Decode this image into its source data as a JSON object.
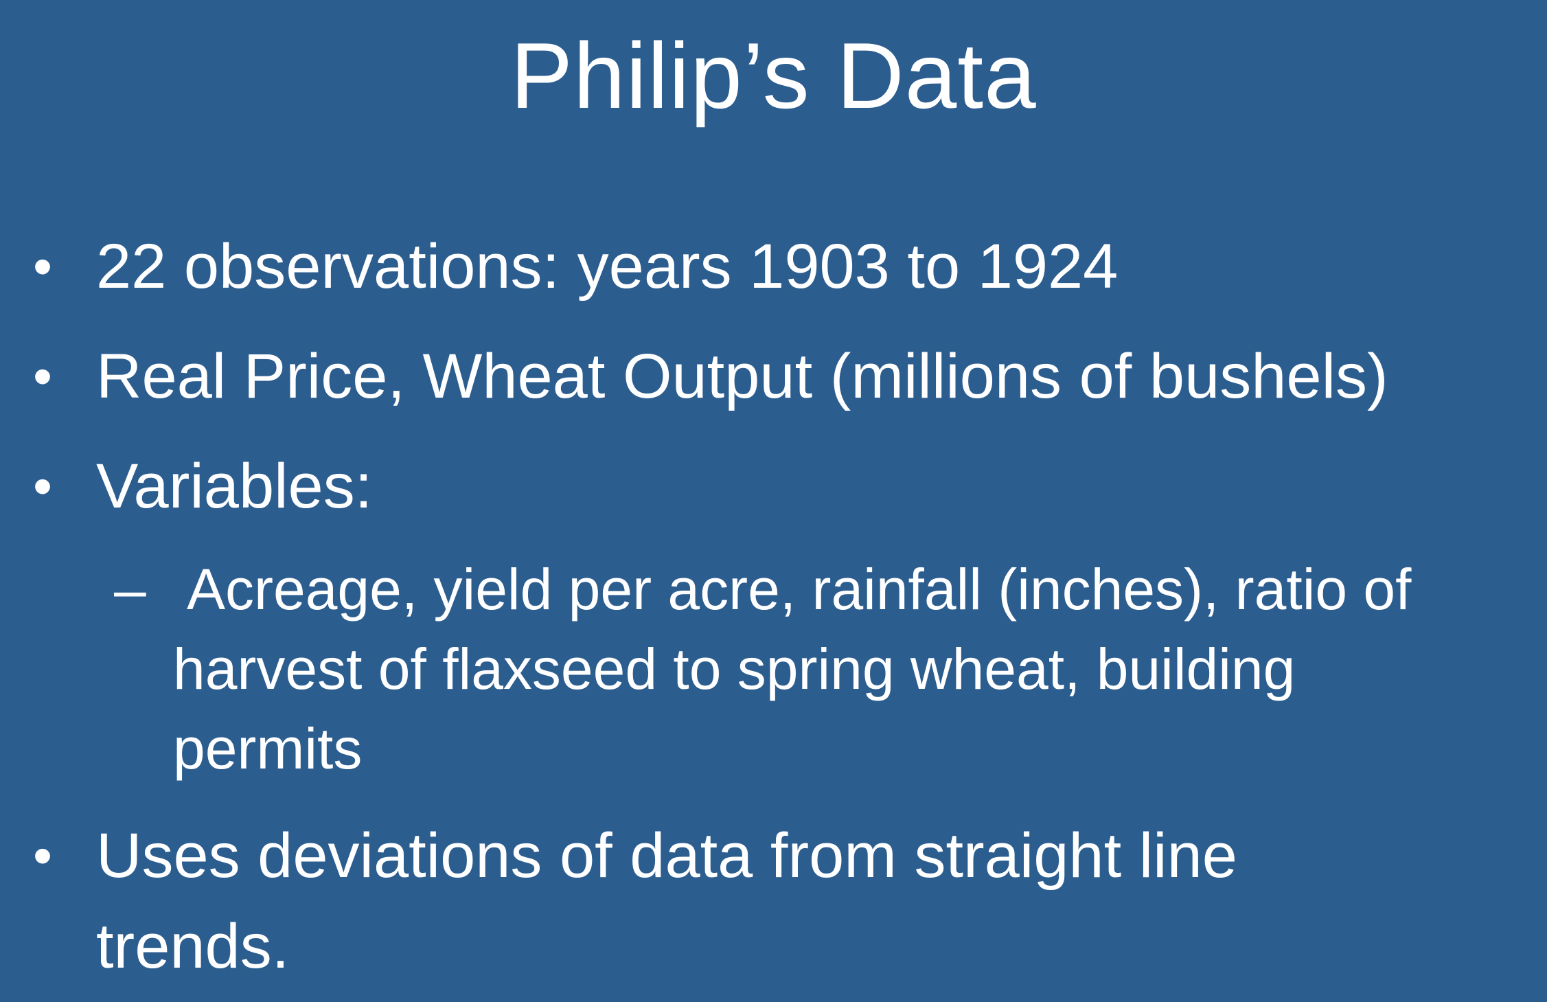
{
  "slide": {
    "title": "Philip’s Data",
    "bullets": [
      {
        "marker": "•",
        "text": "22 observations: years 1903 to 1924"
      },
      {
        "marker": "•",
        "text": "Real Price, Wheat Output (millions of bushels)"
      },
      {
        "marker": "•",
        "text": "Variables:"
      },
      {
        "marker": "•",
        "line1": "Uses deviations of data from straight line",
        "line2": "trends."
      }
    ],
    "sub_bullet": {
      "marker": "–",
      "line1": "Acreage, yield per acre, rainfall (inches), ratio of",
      "line2": "harvest of flaxseed to spring wheat, building",
      "line3": "permits"
    },
    "colors": {
      "background": "#2c5d8f",
      "text": "#ffffff"
    }
  }
}
